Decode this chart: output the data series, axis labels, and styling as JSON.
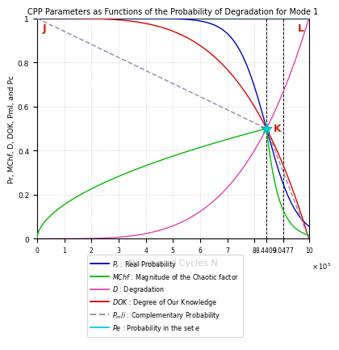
{
  "title": "CPP Parameters as Functions of the Probability of Degradation for Mode 1",
  "xlabel": "Number of Cycles N",
  "ylabel": "Pr, MChf, D, DOK, Pml, and Pc",
  "N_max": 1000000,
  "N_K": 844090,
  "N_L": 904770,
  "x_ticks_values": [
    0,
    100000,
    200000,
    300000,
    400000,
    500000,
    600000,
    700000,
    800000,
    844090,
    904770,
    1000000
  ],
  "x_ticks_labels": [
    "0",
    "1",
    "2",
    "3",
    "4",
    "5",
    "6",
    "7",
    "8",
    "8.4409",
    "9.0477",
    "10"
  ],
  "x_exp_label": "x 10^5",
  "colors": {
    "Pr": "#0000bb",
    "MChf": "#00bb00",
    "D": "#dd44aa",
    "DOK": "#dd0000",
    "Pml": "#8888aa",
    "Pc": "#00ccdd"
  },
  "background": "#ffffff",
  "grid_color": "#cccccc",
  "label_J": "J",
  "label_L": "L",
  "label_K": "K"
}
